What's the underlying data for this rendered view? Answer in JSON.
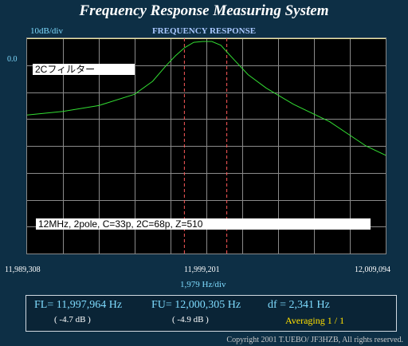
{
  "app": {
    "title": "Frequency Response Measuring System"
  },
  "graph": {
    "title": "FREQUENCY RESPONSE",
    "y_scale": "10dB/div",
    "ref_level": "0.0",
    "filter_label": "2Cフィルター",
    "condition_label": "12MHz, 2pole,  C=33p, 2C=68p, Z=510",
    "x_left": "11,989,308",
    "x_center": "11,999,201",
    "x_right": "12,009,094",
    "x_scale": "1,979  Hz/div"
  },
  "chart_data": {
    "type": "line",
    "x_unit": "Hz",
    "y_unit": "dB",
    "xlim": [
      11989308,
      12009094
    ],
    "ylim": [
      -80,
      0
    ],
    "grid": true,
    "markers": [
      11997964,
      12000305
    ],
    "series": [
      {
        "x": [
          11989308,
          11991287,
          11993266,
          11995245,
          11996235,
          11997000,
          11997500,
          11998000,
          11998500,
          11999000,
          11999500,
          12000000,
          12000305,
          12000800,
          12001500,
          12002500,
          12004000,
          12006000,
          12008000,
          12009094
        ],
        "values": [
          -28.5,
          -27.2,
          -25.0,
          -20.8,
          -16.0,
          -10.0,
          -6.5,
          -3.5,
          -1.5,
          -1.2,
          -1.2,
          -2.6,
          -4.9,
          -8.5,
          -13.5,
          -18.5,
          -24.5,
          -31.0,
          -40.0,
          -43.5
        ]
      }
    ]
  },
  "results": {
    "fl": "FL= 11,997,964  Hz",
    "fl_db": "( -4.7 dB )",
    "fu": "FU= 12,000,305  Hz",
    "fu_db": "( -4.9 dB )",
    "df": "df = 2,341  Hz",
    "averaging": "Averaging   1 / 1"
  },
  "footer": {
    "copyright": "Copyright 2001 T.UEBO/ JF3HZB, All rights reserved."
  },
  "colors": {
    "trace": "#33dd33",
    "grid": "#8a8a8a",
    "reference_line": "#e8e8a0",
    "marker": "#ff5a5a"
  }
}
